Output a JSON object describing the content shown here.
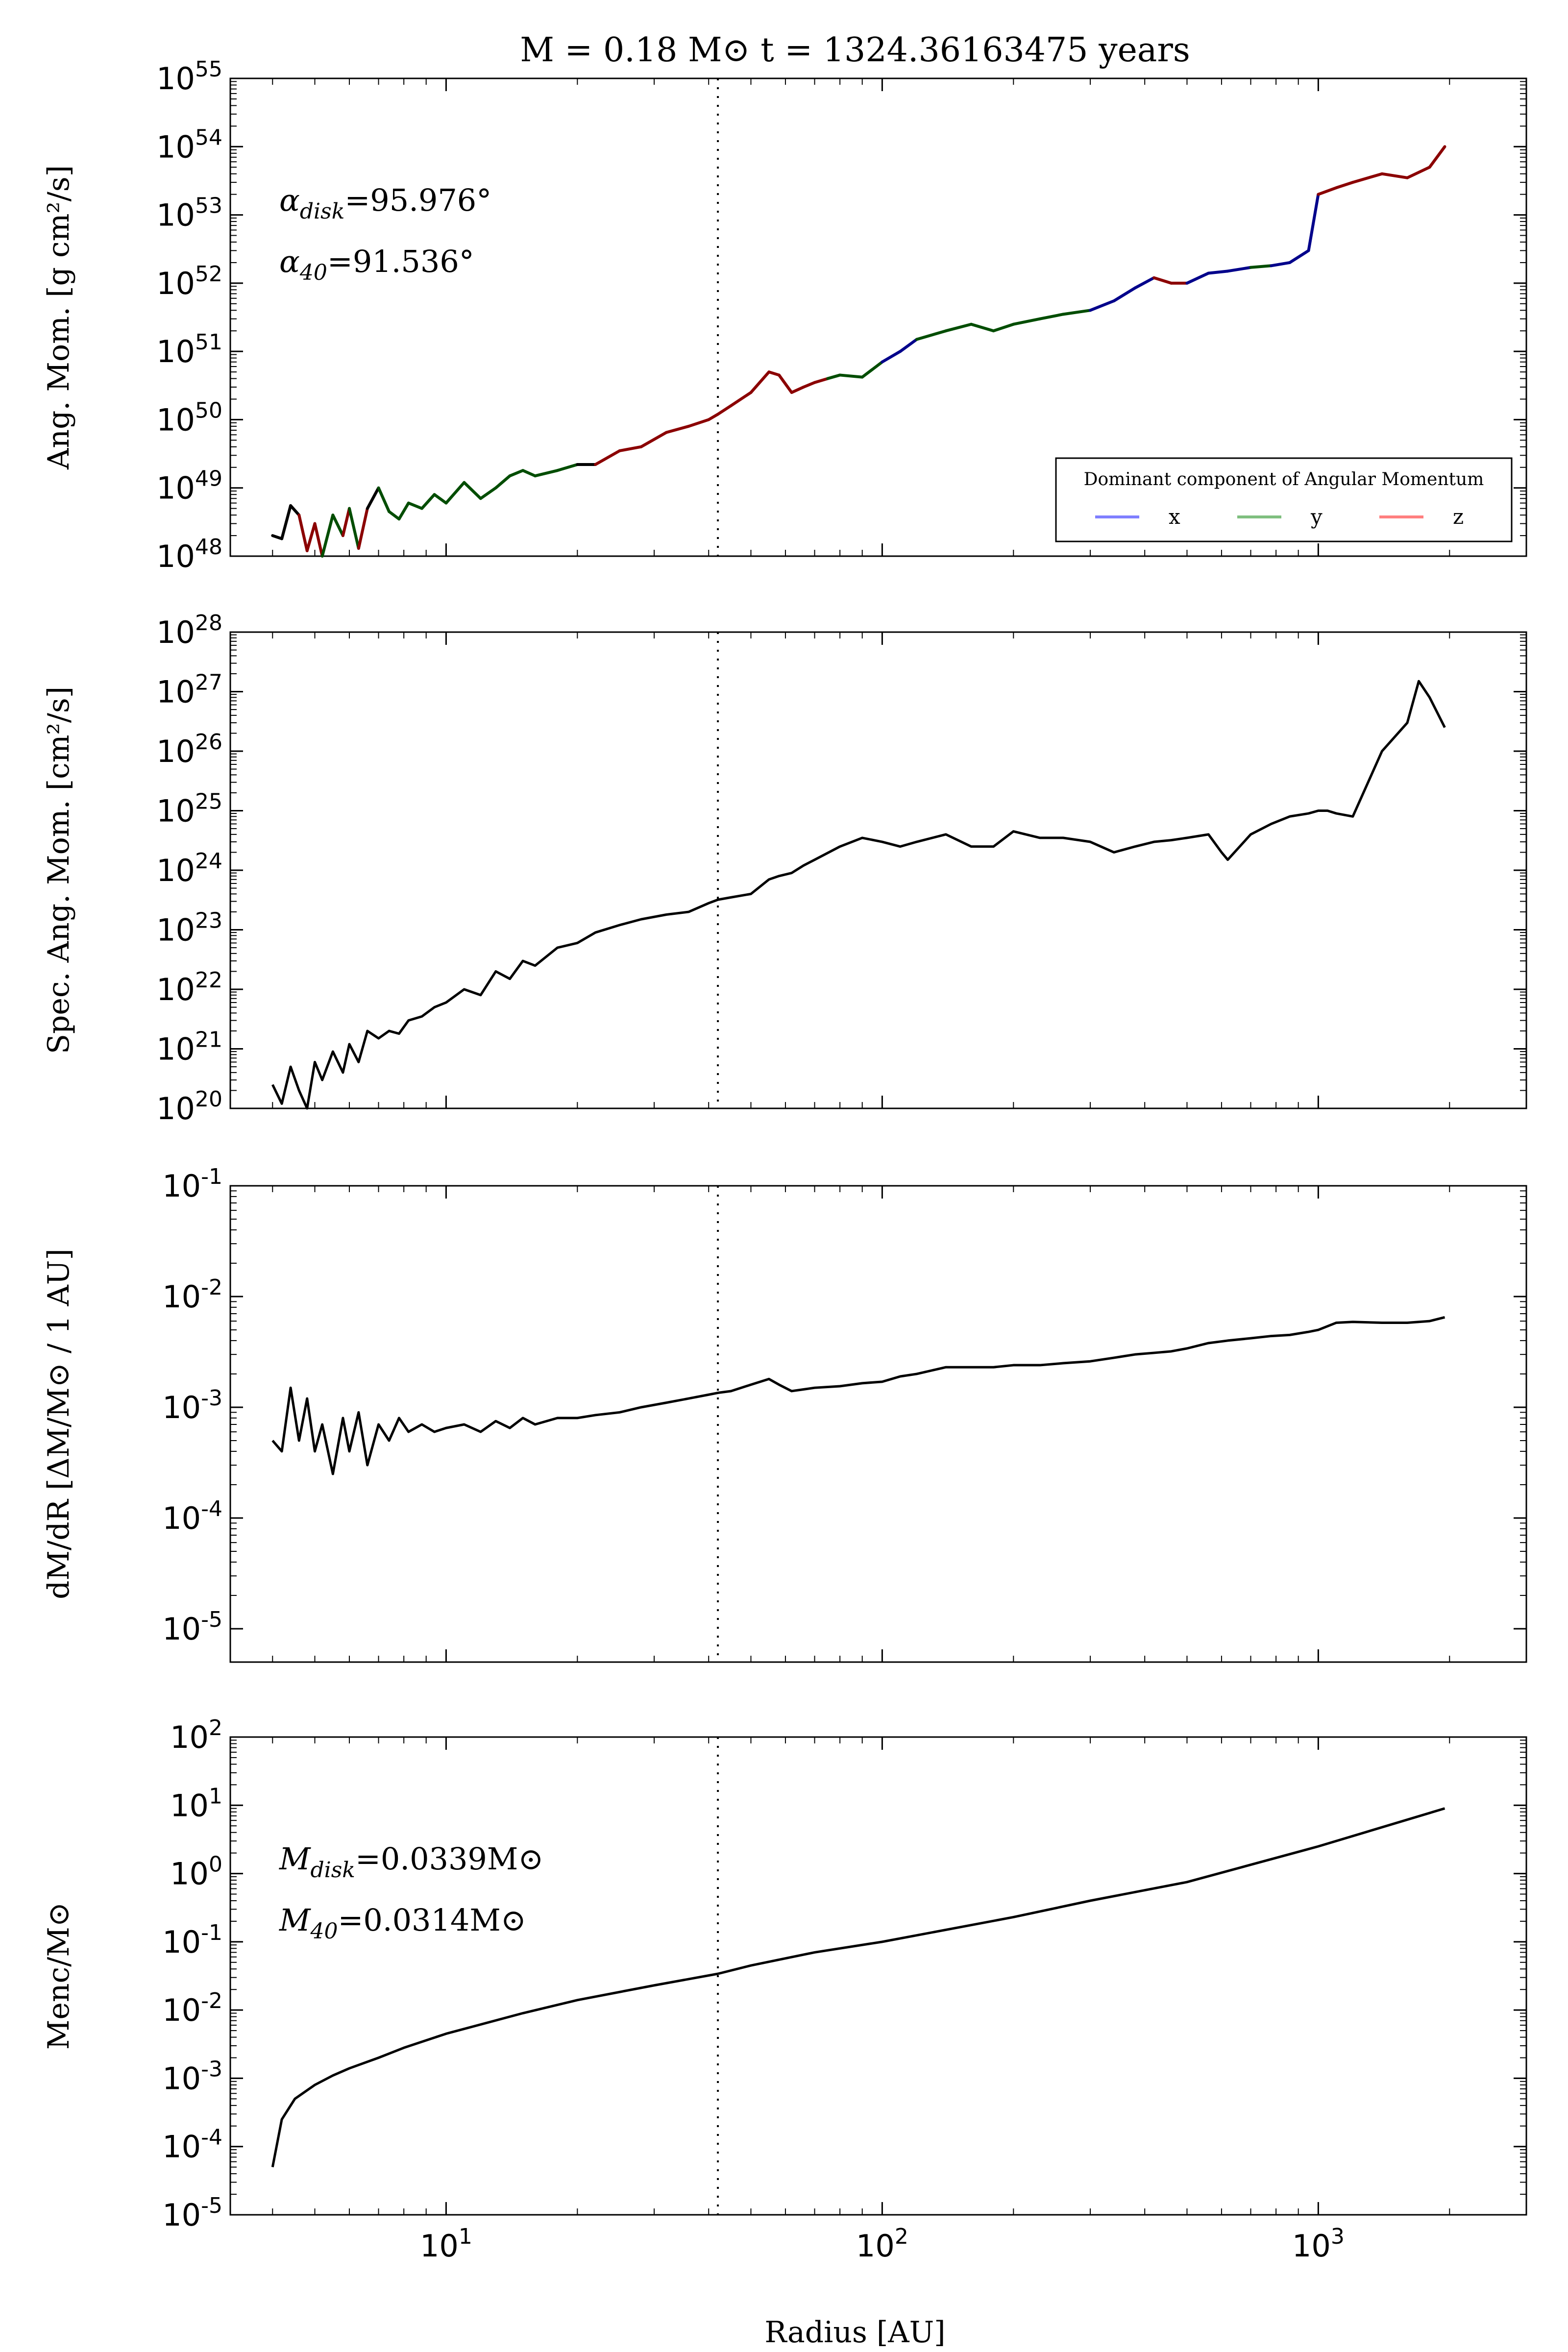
{
  "chart_data": {
    "title": "M = 0.18 M⊙  t = 1324.36163475 years",
    "xlabel": "Radius [AU]",
    "xscale": "log",
    "xlim": [
      3.2,
      3000
    ],
    "x_tick_labels": [
      "10",
      "10",
      "10"
    ],
    "x_tick_values": [
      10,
      100,
      1000
    ],
    "x_tick_exponents": [
      "1",
      "2",
      "3"
    ],
    "marker_line_x": 42,
    "panels": [
      {
        "id": "ang-mom",
        "type": "line",
        "ylabel": "Ang. Mom. [g cm²/s]",
        "yscale": "log",
        "ylim": [
          1e+48,
          1e+55
        ],
        "y_tick_exponents": [
          "48",
          "49",
          "50",
          "51",
          "52",
          "53",
          "54",
          "55"
        ],
        "annotations": [
          "αdisk =95.976°",
          "α40 =91.536°"
        ],
        "annotation_parts": [
          {
            "sym": "α",
            "sub": "disk",
            "rest": "=95.976°"
          },
          {
            "sym": "α",
            "sub": "40",
            "rest": "=91.536°"
          }
        ],
        "legend": {
          "title": "Dominant component of Angular Momentum",
          "placement": "lower-right",
          "entries": [
            {
              "label": "x",
              "color": "#7f7fff"
            },
            {
              "label": "y",
              "color": "#7fbf7f"
            },
            {
              "label": "z",
              "color": "#ff7f7f"
            }
          ]
        },
        "segment_colors": {
          "x": "#00008b",
          "y": "#004d00",
          "z": "#8b0000",
          "none": "#000000"
        },
        "x": [
          4.0,
          4.2,
          4.4,
          4.6,
          4.8,
          5.0,
          5.2,
          5.5,
          5.8,
          6.0,
          6.3,
          6.6,
          7.0,
          7.4,
          7.8,
          8.2,
          8.8,
          9.4,
          10,
          11,
          12,
          13,
          14,
          15,
          16,
          18,
          20,
          22,
          25,
          28,
          32,
          36,
          40,
          42,
          45,
          50,
          55,
          58,
          62,
          66,
          70,
          75,
          80,
          90,
          100,
          110,
          120,
          140,
          160,
          180,
          200,
          230,
          260,
          300,
          340,
          380,
          420,
          460,
          500,
          560,
          620,
          700,
          780,
          860,
          950,
          1000,
          1100,
          1200,
          1400,
          1600,
          1800,
          1950
        ],
        "y": [
          2e+48,
          1.8e+48,
          5.5e+48,
          4e+48,
          1.2e+48,
          3e+48,
          1e+48,
          4e+48,
          2e+48,
          5e+48,
          1.3e+48,
          5e+48,
          1e+49,
          4.5e+48,
          3.5e+48,
          6e+48,
          5e+48,
          8e+48,
          6e+48,
          1.2e+49,
          7e+48,
          1e+49,
          1.5e+49,
          1.8e+49,
          1.5e+49,
          1.8e+49,
          2.2e+49,
          2.2e+49,
          3.5e+49,
          4e+49,
          6.5e+49,
          8e+49,
          1e+50,
          1.2e+50,
          1.6e+50,
          2.5e+50,
          5e+50,
          4.5e+50,
          2.5e+50,
          3e+50,
          3.5e+50,
          4e+50,
          4.5e+50,
          4.2e+50,
          7e+50,
          1e+51,
          1.5e+51,
          2e+51,
          2.5e+51,
          2e+51,
          2.5e+51,
          3e+51,
          3.5e+51,
          4e+51,
          5.5e+51,
          8.5e+51,
          1.2e+52,
          1e+52,
          1e+52,
          1.4e+52,
          1.5e+52,
          1.7e+52,
          1.8e+52,
          2e+52,
          3e+52,
          2e+53,
          2.5e+53,
          3e+53,
          4e+53,
          3.5e+53,
          5e+53,
          1e+54
        ],
        "c": [
          "none",
          "none",
          "none",
          "z",
          "z",
          "z",
          "y",
          "y",
          "z",
          "y",
          "z",
          "none",
          "y",
          "y",
          "y",
          "y",
          "y",
          "y",
          "y",
          "y",
          "y",
          "y",
          "y",
          "y",
          "y",
          "y",
          "none",
          "z",
          "z",
          "z",
          "z",
          "z",
          "z",
          "z",
          "z",
          "z",
          "z",
          "z",
          "z",
          "z",
          "z",
          "y",
          "y",
          "y",
          "x",
          "x",
          "y",
          "y",
          "y",
          "y",
          "y",
          "y",
          "y",
          "x",
          "x",
          "x",
          "z",
          "z",
          "x",
          "x",
          "x",
          "y",
          "x",
          "x",
          "x",
          "z",
          "z",
          "z",
          "z",
          "z",
          "z",
          "z"
        ]
      },
      {
        "id": "spec-ang-mom",
        "type": "line",
        "ylabel": "Spec. Ang. Mom. [cm²/s]",
        "yscale": "log",
        "ylim": [
          1e+20,
          1e+28
        ],
        "y_tick_exponents": [
          "20",
          "21",
          "22",
          "23",
          "24",
          "25",
          "26",
          "27",
          "28"
        ],
        "x": [
          4.0,
          4.2,
          4.4,
          4.6,
          4.8,
          5.0,
          5.2,
          5.5,
          5.8,
          6.0,
          6.3,
          6.6,
          7.0,
          7.4,
          7.8,
          8.2,
          8.8,
          9.4,
          10,
          11,
          12,
          13,
          14,
          15,
          16,
          18,
          20,
          22,
          25,
          28,
          32,
          36,
          40,
          42,
          45,
          50,
          55,
          58,
          62,
          66,
          70,
          80,
          90,
          100,
          110,
          120,
          140,
          160,
          180,
          200,
          230,
          260,
          300,
          340,
          380,
          420,
          460,
          500,
          560,
          600,
          620,
          700,
          780,
          860,
          950,
          1000,
          1050,
          1100,
          1200,
          1400,
          1600,
          1700,
          1800,
          1950
        ],
        "y": [
          2.5e+20,
          1.2e+20,
          5e+20,
          2e+20,
          1e+20,
          6e+20,
          3e+20,
          9e+20,
          4e+20,
          1.2e+21,
          6e+20,
          2e+21,
          1.5e+21,
          2e+21,
          1.8e+21,
          3e+21,
          3.5e+21,
          5e+21,
          6e+21,
          1e+22,
          8e+21,
          2e+22,
          1.5e+22,
          3e+22,
          2.5e+22,
          5e+22,
          6e+22,
          9e+22,
          1.2e+23,
          1.5e+23,
          1.8e+23,
          2e+23,
          2.8e+23,
          3.2e+23,
          3.5e+23,
          4e+23,
          7e+23,
          8e+23,
          9e+23,
          1.2e+24,
          1.5e+24,
          2.5e+24,
          3.5e+24,
          3e+24,
          2.5e+24,
          3e+24,
          4e+24,
          2.5e+24,
          2.5e+24,
          4.5e+24,
          3.5e+24,
          3.5e+24,
          3e+24,
          2e+24,
          2.5e+24,
          3e+24,
          3.2e+24,
          3.5e+24,
          4e+24,
          2e+24,
          1.5e+24,
          4e+24,
          6e+24,
          8e+24,
          9e+24,
          1e+25,
          1e+25,
          9e+24,
          8e+24,
          1e+26,
          3e+26,
          1.5e+27,
          8e+26,
          2.5e+26
        ]
      },
      {
        "id": "dmdr",
        "type": "line",
        "ylabel": "dM/dR [ΔM/M⊙ / 1 AU]",
        "yscale": "log",
        "ylim": [
          5e-06,
          0.1
        ],
        "y_tick_exponents": [
          "-5",
          "-4",
          "-3",
          "-2",
          "-1"
        ],
        "x": [
          4.0,
          4.2,
          4.4,
          4.6,
          4.8,
          5.0,
          5.2,
          5.5,
          5.8,
          6.0,
          6.3,
          6.6,
          7.0,
          7.4,
          7.8,
          8.2,
          8.8,
          9.4,
          10,
          11,
          12,
          13,
          14,
          15,
          16,
          18,
          20,
          22,
          25,
          28,
          32,
          36,
          40,
          42,
          45,
          50,
          55,
          58,
          62,
          66,
          70,
          80,
          90,
          100,
          110,
          120,
          140,
          160,
          180,
          200,
          230,
          260,
          300,
          340,
          380,
          420,
          460,
          500,
          560,
          620,
          700,
          780,
          860,
          950,
          1000,
          1100,
          1200,
          1400,
          1600,
          1800,
          1950
        ],
        "y": [
          0.0005,
          0.0004,
          0.0015,
          0.0005,
          0.0012,
          0.0004,
          0.0007,
          0.00025,
          0.0008,
          0.0004,
          0.0009,
          0.0003,
          0.0007,
          0.0005,
          0.0008,
          0.0006,
          0.0007,
          0.0006,
          0.00065,
          0.0007,
          0.0006,
          0.00075,
          0.00065,
          0.0008,
          0.0007,
          0.0008,
          0.0008,
          0.00085,
          0.0009,
          0.001,
          0.0011,
          0.0012,
          0.0013,
          0.00135,
          0.0014,
          0.0016,
          0.0018,
          0.0016,
          0.0014,
          0.00145,
          0.0015,
          0.00155,
          0.00165,
          0.0017,
          0.0019,
          0.002,
          0.0023,
          0.0023,
          0.0023,
          0.0024,
          0.0024,
          0.0025,
          0.0026,
          0.0028,
          0.003,
          0.0031,
          0.0032,
          0.0034,
          0.0038,
          0.004,
          0.0042,
          0.0044,
          0.0045,
          0.0048,
          0.005,
          0.0058,
          0.0059,
          0.0058,
          0.0058,
          0.006,
          0.0065
        ]
      },
      {
        "id": "menc",
        "type": "line",
        "ylabel": "Menc/M⊙",
        "yscale": "log",
        "ylim": [
          1e-05,
          100.0
        ],
        "y_tick_exponents": [
          "-5",
          "-4",
          "-3",
          "-2",
          "-1",
          "0",
          "1",
          "2"
        ],
        "annotations": [
          "Mdisk =0.0339M⊙",
          "M40 =0.0314M⊙"
        ],
        "annotation_parts": [
          {
            "sym": "M",
            "sub": "disk",
            "rest": "=0.0339M⊙"
          },
          {
            "sym": "M",
            "sub": "40",
            "rest": "=0.0314M⊙"
          }
        ],
        "x": [
          4.0,
          4.2,
          4.5,
          5.0,
          5.5,
          6.0,
          7.0,
          8.0,
          10,
          15,
          20,
          30,
          42,
          50,
          70,
          100,
          200,
          300,
          500,
          1000,
          1950
        ],
        "y": [
          5e-05,
          0.00025,
          0.0005,
          0.0008,
          0.0011,
          0.0014,
          0.002,
          0.0028,
          0.0045,
          0.009,
          0.014,
          0.023,
          0.034,
          0.045,
          0.07,
          0.1,
          0.23,
          0.4,
          0.75,
          2.5,
          9.0
        ]
      }
    ]
  }
}
